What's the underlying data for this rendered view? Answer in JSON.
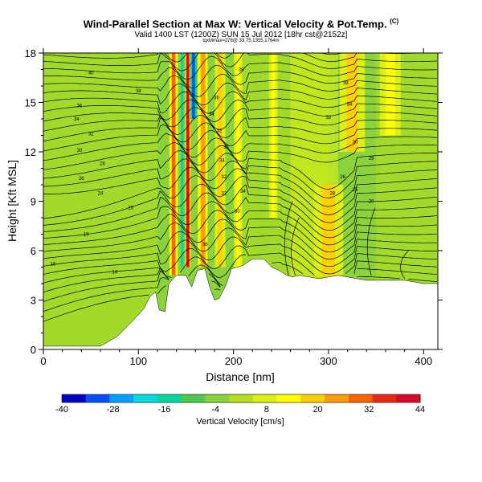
{
  "title": {
    "main": "Wind-Parallel Section at Max W: Vertical Velocity & Pot.Temp.",
    "sup": "(C)"
  },
  "subtitle": "Valid 1400 LST (1200Z) SUN 15 Jul 2012 [18hr cst@2152z]",
  "subtitle2": "lqxMmax=378@ 33.75,1355,1764m",
  "chart_data": {
    "type": "heatmap",
    "xlabel": "Distance [nm]",
    "ylabel": "Height [Kft MSL]",
    "xlim": [
      0,
      415
    ],
    "ylim": [
      0,
      18
    ],
    "xticks": [
      "0",
      "100",
      "200",
      "300",
      "400"
    ],
    "yticks": [
      "0",
      "3",
      "6",
      "9",
      "12",
      "15",
      "18"
    ],
    "colorbar": {
      "label": "Vertical Velocity [cm/s]",
      "ticks": [
        "-40",
        "-28",
        "-16",
        "-4",
        "8",
        "20",
        "32",
        "44"
      ],
      "range": [
        -40,
        44
      ],
      "colors": [
        "#0000c8",
        "#0050ff",
        "#00a0ff",
        "#00dcdc",
        "#00d8a0",
        "#50c850",
        "#8cd23c",
        "#b4e01e",
        "#dcf014",
        "#ffff00",
        "#ffd000",
        "#ffa000",
        "#ff6400",
        "#e62814",
        "#dc0a28"
      ]
    },
    "terrain": [
      [
        0,
        0.2
      ],
      [
        60,
        0.2
      ],
      [
        78,
        0.8
      ],
      [
        90,
        1.5
      ],
      [
        100,
        2.1
      ],
      [
        106,
        2.5
      ],
      [
        112,
        3.2
      ],
      [
        118,
        3.5
      ],
      [
        122,
        2.4
      ],
      [
        128,
        2.3
      ],
      [
        132,
        4.0
      ],
      [
        140,
        4.5
      ],
      [
        150,
        4.5
      ],
      [
        156,
        3.8
      ],
      [
        162,
        4.8
      ],
      [
        170,
        4.9
      ],
      [
        175,
        3.8
      ],
      [
        180,
        3.0
      ],
      [
        185,
        3.1
      ],
      [
        192,
        3.9
      ],
      [
        198,
        4.9
      ],
      [
        210,
        5.1
      ],
      [
        220,
        5.5
      ],
      [
        232,
        5.5
      ],
      [
        240,
        5.0
      ],
      [
        248,
        4.8
      ],
      [
        256,
        4.5
      ],
      [
        262,
        4.4
      ],
      [
        270,
        4.5
      ],
      [
        290,
        4.3
      ],
      [
        300,
        4.4
      ],
      [
        310,
        4.5
      ],
      [
        340,
        4.2
      ],
      [
        380,
        4.2
      ],
      [
        400,
        4.0
      ],
      [
        415,
        4.0
      ]
    ],
    "updrafts": [
      {
        "x": 137,
        "w": 4,
        "value": 28,
        "top": 18,
        "bottom": 4.5
      },
      {
        "x": 152,
        "w": 3,
        "value": 44,
        "top": 18,
        "bottom": 5
      },
      {
        "x": 168,
        "w": 5,
        "value": 24,
        "top": 18,
        "bottom": 5
      },
      {
        "x": 186,
        "w": 5,
        "value": 18,
        "top": 18,
        "bottom": 5
      },
      {
        "x": 205,
        "w": 4,
        "value": 12,
        "top": 18,
        "bottom": 5
      },
      {
        "x": 242,
        "w": 4,
        "value": 14,
        "top": 18,
        "bottom": 8
      },
      {
        "x": 300,
        "w": 14,
        "value": 18,
        "top": 10,
        "bottom": 4.5
      },
      {
        "x": 325,
        "w": 12,
        "value": 16,
        "top": 18,
        "bottom": 12
      },
      {
        "x": 365,
        "w": 10,
        "value": 12,
        "top": 18,
        "bottom": 13
      }
    ],
    "downdrafts": [
      {
        "x": 146,
        "w": 3,
        "value": -14,
        "top": 18,
        "bottom": 5
      },
      {
        "x": 158,
        "w": 3,
        "value": -30,
        "top": 18,
        "bottom": 14
      },
      {
        "x": 176,
        "w": 3,
        "value": -6,
        "top": 18,
        "bottom": 5
      },
      {
        "x": 196,
        "w": 3,
        "value": -4,
        "top": 18,
        "bottom": 6
      }
    ],
    "contour_labels": [
      {
        "x": 50,
        "y": 16.8,
        "text": "40"
      },
      {
        "x": 100,
        "y": 15.7,
        "text": "38"
      },
      {
        "x": 38,
        "y": 14.8,
        "text": "36"
      },
      {
        "x": 35,
        "y": 14.0,
        "text": "34"
      },
      {
        "x": 50,
        "y": 13.1,
        "text": "32"
      },
      {
        "x": 38,
        "y": 12.1,
        "text": "30"
      },
      {
        "x": 62,
        "y": 11.3,
        "text": "28"
      },
      {
        "x": 40,
        "y": 10.4,
        "text": "26"
      },
      {
        "x": 60,
        "y": 9.5,
        "text": "24"
      },
      {
        "x": 92,
        "y": 8.6,
        "text": "20"
      },
      {
        "x": 45,
        "y": 7.0,
        "text": "18"
      },
      {
        "x": 10,
        "y": 5.2,
        "text": "16"
      },
      {
        "x": 75,
        "y": 4.7,
        "text": "14"
      },
      {
        "x": 170,
        "y": 6.4,
        "text": "36"
      },
      {
        "x": 208,
        "y": 17.0,
        "text": "38"
      },
      {
        "x": 182,
        "y": 15.3,
        "text": "36"
      },
      {
        "x": 177,
        "y": 14.3,
        "text": "34"
      },
      {
        "x": 185,
        "y": 13.3,
        "text": "32"
      },
      {
        "x": 192,
        "y": 12.3,
        "text": "30"
      },
      {
        "x": 188,
        "y": 11.5,
        "text": "34"
      },
      {
        "x": 190,
        "y": 10.5,
        "text": "32"
      },
      {
        "x": 190,
        "y": 9.5,
        "text": "32"
      },
      {
        "x": 210,
        "y": 9.6,
        "text": "34"
      },
      {
        "x": 204,
        "y": 8.4,
        "text": "30"
      },
      {
        "x": 318,
        "y": 16.2,
        "text": "38"
      },
      {
        "x": 322,
        "y": 14.9,
        "text": "34"
      },
      {
        "x": 300,
        "y": 14.1,
        "text": "32"
      },
      {
        "x": 328,
        "y": 12.6,
        "text": "30"
      },
      {
        "x": 345,
        "y": 11.6,
        "text": "28"
      },
      {
        "x": 315,
        "y": 10.5,
        "text": "26"
      },
      {
        "x": 328,
        "y": 9.7,
        "text": "25"
      },
      {
        "x": 304,
        "y": 9.5,
        "text": "28"
      },
      {
        "x": 345,
        "y": 9.0,
        "text": "20"
      }
    ]
  }
}
